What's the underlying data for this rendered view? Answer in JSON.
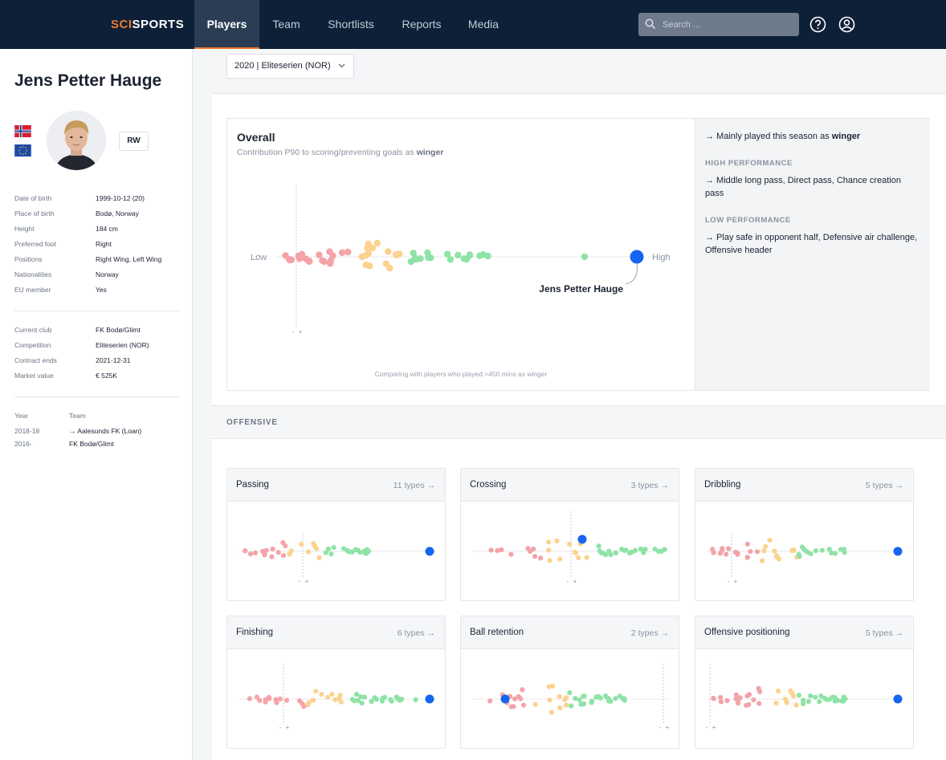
{
  "nav": {
    "logo_part1": "SCI",
    "logo_part2": "SPORTS",
    "tabs": [
      {
        "label": "Players"
      },
      {
        "label": "Team"
      },
      {
        "label": "Shortlists"
      },
      {
        "label": "Reports"
      },
      {
        "label": "Media"
      }
    ],
    "search_placeholder": "Search ..."
  },
  "player": {
    "name": "Jens Petter Hauge",
    "position_badge": "RW",
    "details": [
      {
        "label": "Date of birth",
        "value": "1999-10-12 (20)"
      },
      {
        "label": "Place of birth",
        "value": "Bodø, Norway"
      },
      {
        "label": "Height",
        "value": "184 cm"
      },
      {
        "label": "Preferred foot",
        "value": "Right"
      },
      {
        "label": "Positions",
        "value": "Right Wing, Left Wing"
      },
      {
        "label": "Nationalities",
        "value": "Norway"
      },
      {
        "label": "EU member",
        "value": "Yes"
      }
    ],
    "club": [
      {
        "label": "Current club",
        "value": "FK Bodø/Glimt"
      },
      {
        "label": "Competition",
        "value": "Eliteserien (NOR)"
      },
      {
        "label": "Contract ends",
        "value": "2021-12-31"
      },
      {
        "label": "Market value",
        "value": "€ 525K"
      }
    ],
    "history_header": {
      "year": "Year",
      "team": "Team"
    },
    "history": [
      {
        "year": "2018-18",
        "team": "→ Aalesunds FK (Loan)"
      },
      {
        "year": "2016-",
        "team": "FK Bodø/Glimt"
      }
    ]
  },
  "season_select": "2020 | Eliteserien (NOR)",
  "overall": {
    "title": "Overall",
    "subtitle_prefix": "Contribution P90 to scoring/preventing goals as",
    "subtitle_role": "winger",
    "low_label": "Low",
    "high_label": "High",
    "player_label": "Jens Petter Hauge",
    "footnote": "Comparing with players who played >450 mins as winger",
    "minus": "-",
    "plus": "+"
  },
  "summary": {
    "role_prefix": "→ Mainly played this season as",
    "role": "winger",
    "high_header": "HIGH PERFORMANCE",
    "high_text": "→ Middle long pass, Direct pass, Chance creation pass",
    "low_header": "LOW PERFORMANCE",
    "low_text": "→ Play safe in opponent half, Defensive air challenge, Offensive header"
  },
  "section": {
    "title": "OFFENSIVE"
  },
  "metrics": [
    {
      "name": "Passing",
      "types": "11 types →"
    },
    {
      "name": "Crossing",
      "types": "3 types →"
    },
    {
      "name": "Dribbling",
      "types": "5 types →"
    },
    {
      "name": "Finishing",
      "types": "6 types →"
    },
    {
      "name": "Ball retention",
      "types": "2 types →"
    },
    {
      "name": "Offensive positioning",
      "types": "5 types →"
    }
  ],
  "colors": {
    "low": "#f4a3a8",
    "mid": "#fbd28f",
    "high": "#8ee3a6",
    "player": "#1565f0",
    "accent": "#f07a2b",
    "nav_bg": "#0e2038"
  }
}
